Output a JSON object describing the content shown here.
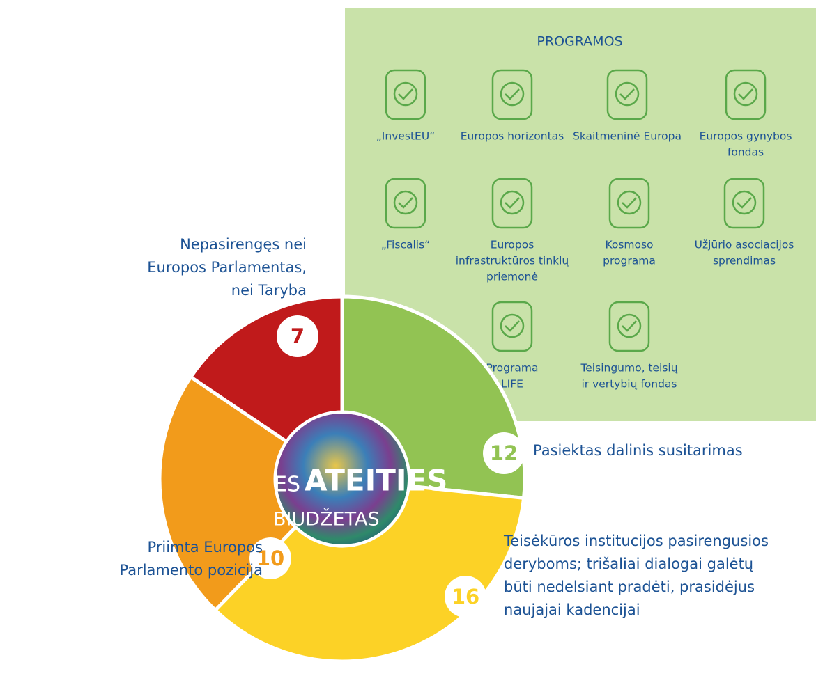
{
  "chart_data": {
    "type": "donut",
    "center_label": [
      "ES",
      "ATEITIES",
      "BIUDŽETAS"
    ],
    "categories": [
      [
        "Pasiektas dalinis susitarimas"
      ],
      [
        "Teisėkūros institucijos pasirengusios",
        "deryboms; trišaliai dialogai galėtų",
        "būti nedelsiant pradėti, prasidėjus",
        "naujajai kadencijai"
      ],
      [
        "Priimta Europos",
        "Parlamento pozicija"
      ],
      [
        "Nepasirengęs nei",
        "Europos Parlamentas,",
        "nei Taryba"
      ]
    ],
    "values": [
      12,
      16,
      10,
      7
    ],
    "colors": [
      "#92c353",
      "#fcd226",
      "#f29b1b",
      "#c01a1b"
    ]
  },
  "programs": {
    "title": "PROGRAMOS",
    "items": [
      [
        "„InvestEU“"
      ],
      [
        "Europos horizontas"
      ],
      [
        "Skaitmeninė Europa"
      ],
      [
        "Europos gynybos",
        "fondas"
      ],
      [
        "„Fiscalis“"
      ],
      [
        "Europos",
        "infrastruktūros tinklų",
        "priemonė"
      ],
      [
        "Kosmoso",
        "programa"
      ],
      [
        "Užjūrio asociacijos",
        "sprendimas"
      ],
      [
        "Programa",
        "LIFE"
      ],
      [
        "Teisingumo, teisių",
        "ir vertybių fondas"
      ]
    ]
  }
}
